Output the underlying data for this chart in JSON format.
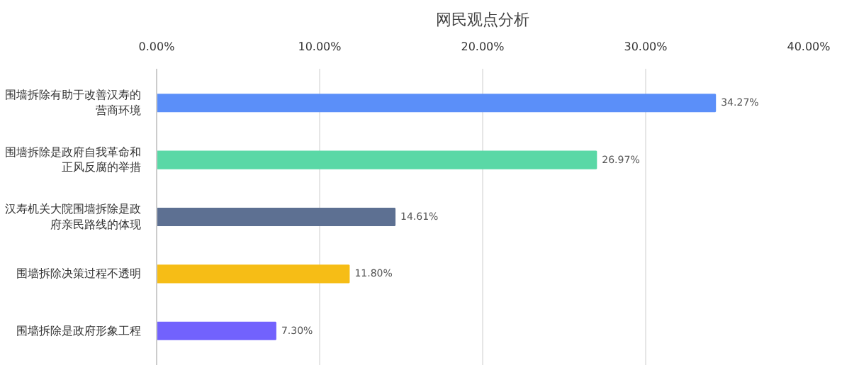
{
  "chart_data": {
    "type": "bar",
    "orientation": "horizontal",
    "title": "网民观点分析",
    "categories": [
      "围墙拆除有助于改善汉寿的营商环境",
      "围墙拆除是政府自我革命和正风反腐的举措",
      "汉寿机关大院围墙拆除是政府亲民路线的体现",
      "围墙拆除决策过程不透明",
      "围墙拆除是政府形象工程"
    ],
    "values": [
      34.27,
      26.97,
      14.61,
      11.8,
      7.3
    ],
    "colors": [
      "#5b8ff9",
      "#5ad8a6",
      "#5d7092",
      "#f6bd16",
      "#7262fd"
    ],
    "xlim": [
      0,
      40
    ],
    "xticks": [
      {
        "value": 0,
        "label": "0.00%"
      },
      {
        "value": 10,
        "label": "10.00%"
      },
      {
        "value": 20,
        "label": "20.00%"
      },
      {
        "value": 30,
        "label": "30.00%"
      },
      {
        "value": 40,
        "label": "40.00%"
      }
    ],
    "value_labels": [
      "34.27%",
      "26.97%",
      "14.61%",
      "11.80%",
      "7.30%"
    ],
    "grid": "x"
  }
}
